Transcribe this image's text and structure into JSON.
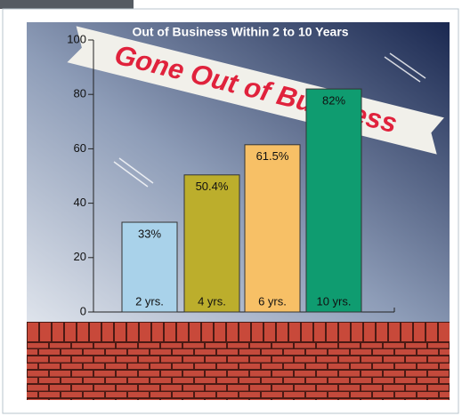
{
  "chart_data": {
    "type": "bar",
    "title": "Out of Business Within 2 to 10 Years",
    "banner": "Gone Out of Business",
    "categories": [
      "2 yrs.",
      "4 yrs.",
      "6 yrs.",
      "10 yrs."
    ],
    "values": [
      33,
      50.4,
      61.5,
      82
    ],
    "value_labels": [
      "33%",
      "50.4%",
      "61.5%",
      "82%"
    ],
    "colors": [
      "#a9d2ea",
      "#bcae2c",
      "#f7c066",
      "#0f9c70"
    ],
    "ylim": [
      0,
      100
    ],
    "yticks": [
      0,
      20,
      40,
      60,
      80,
      100
    ]
  }
}
